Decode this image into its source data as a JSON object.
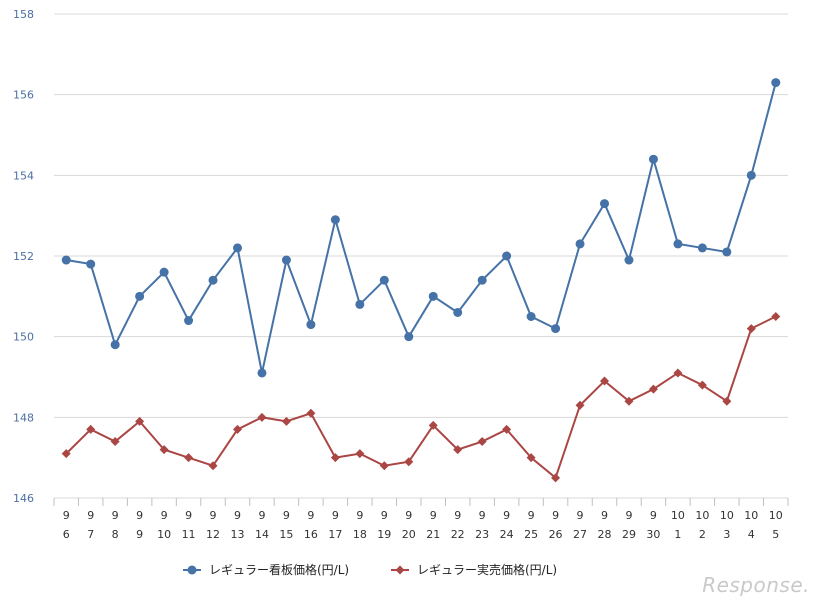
{
  "chart_data": {
    "type": "line",
    "categories": [
      [
        "9",
        "6"
      ],
      [
        "9",
        "7"
      ],
      [
        "9",
        "8"
      ],
      [
        "9",
        "9"
      ],
      [
        "9",
        "10"
      ],
      [
        "9",
        "11"
      ],
      [
        "9",
        "12"
      ],
      [
        "9",
        "13"
      ],
      [
        "9",
        "14"
      ],
      [
        "9",
        "15"
      ],
      [
        "9",
        "16"
      ],
      [
        "9",
        "17"
      ],
      [
        "9",
        "18"
      ],
      [
        "9",
        "19"
      ],
      [
        "9",
        "20"
      ],
      [
        "9",
        "21"
      ],
      [
        "9",
        "22"
      ],
      [
        "9",
        "23"
      ],
      [
        "9",
        "24"
      ],
      [
        "9",
        "25"
      ],
      [
        "9",
        "26"
      ],
      [
        "9",
        "27"
      ],
      [
        "9",
        "28"
      ],
      [
        "9",
        "29"
      ],
      [
        "9",
        "30"
      ],
      [
        "10",
        "1"
      ],
      [
        "10",
        "2"
      ],
      [
        "10",
        "3"
      ],
      [
        "10",
        "4"
      ],
      [
        "10",
        "5"
      ]
    ],
    "series": [
      {
        "name": "レギュラー看板価格(円/L)",
        "color": "#4572a7",
        "marker": "circle",
        "values": [
          151.9,
          151.8,
          149.8,
          151.0,
          151.6,
          150.4,
          151.4,
          152.2,
          149.1,
          151.9,
          150.3,
          152.9,
          150.8,
          151.4,
          150.0,
          151.0,
          150.6,
          151.4,
          152.0,
          150.5,
          150.2,
          152.3,
          153.3,
          151.9,
          154.4,
          152.3,
          152.2,
          152.1,
          154.0,
          156.3
        ]
      },
      {
        "name": "レギュラー実売価格(円/L)",
        "color": "#aa4643",
        "marker": "diamond",
        "values": [
          147.1,
          147.7,
          147.4,
          147.9,
          147.2,
          147.0,
          146.8,
          147.7,
          148.0,
          147.9,
          148.1,
          147.0,
          147.1,
          146.8,
          146.9,
          147.8,
          147.2,
          147.4,
          147.7,
          147.0,
          146.5,
          148.3,
          148.9,
          148.4,
          148.7,
          149.1,
          148.8,
          148.4,
          150.2,
          150.5
        ]
      }
    ],
    "ylim": [
      146,
      158
    ],
    "yticks": [
      146,
      148,
      150,
      152,
      154,
      156,
      158
    ],
    "grid": true,
    "legend": "bottom",
    "title": "",
    "xlabel": "",
    "ylabel": ""
  },
  "watermark": "Response."
}
